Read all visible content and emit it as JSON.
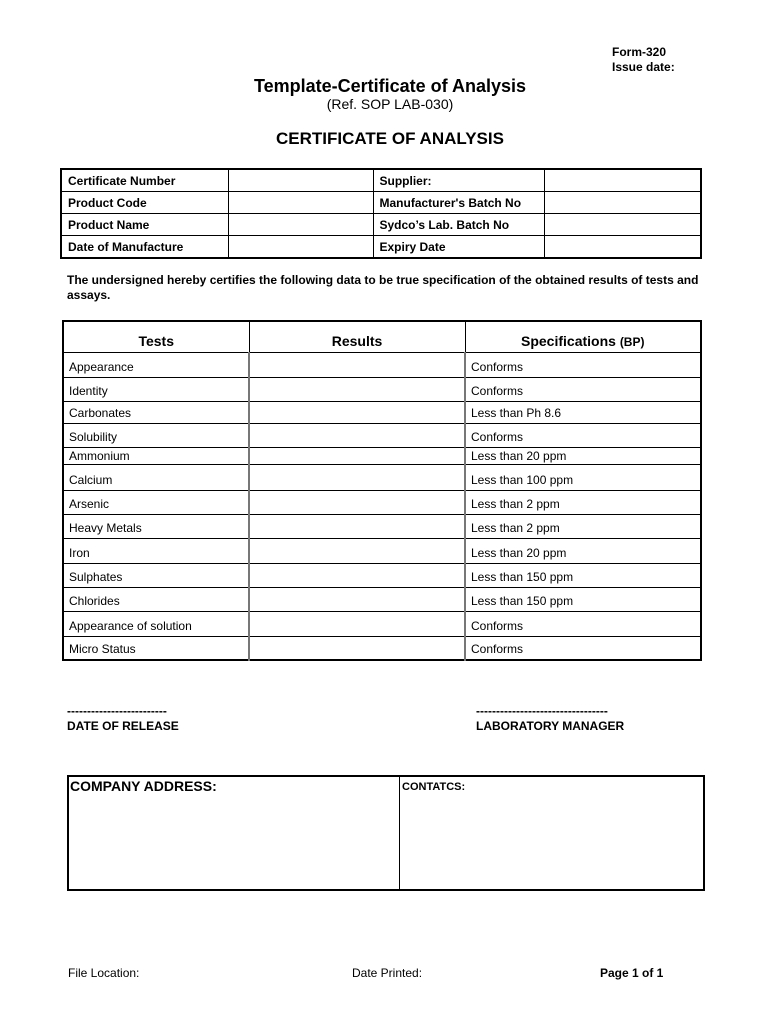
{
  "header": {
    "form": "Form-320",
    "issue_date": "Issue date:",
    "title": "Template-Certificate of Analysis",
    "ref": "(Ref. SOP LAB-030)",
    "certificate_heading": "CERTIFICATE OF ANALYSIS"
  },
  "info_table": [
    {
      "left": "Certificate Number",
      "right": "Supplier:"
    },
    {
      "left": "Product Code",
      "right": "Manufacturer's Batch No"
    },
    {
      "left": "Product Name",
      "right": "Sydco’s Lab. Batch No"
    },
    {
      "left": "Date of Manufacture",
      "right": "Expiry Date"
    }
  ],
  "statement": "The undersigned hereby certifies the following data to be true specification of the obtained results of tests and assays.",
  "tests_table": {
    "headers": {
      "tests": "Tests",
      "results": "Results",
      "specifications": "Specifications",
      "spec_suffix": "(BP)"
    },
    "rows": [
      {
        "test": "Appearance",
        "result": "",
        "spec": "Conforms"
      },
      {
        "test": "Identity",
        "result": "",
        "spec": "Conforms"
      },
      {
        "test": "Carbonates",
        "result": "",
        "spec": "Less than Ph 8.6"
      },
      {
        "test": "Solubility",
        "result": "",
        "spec": "Conforms"
      },
      {
        "test": "Ammonium",
        "result": "",
        "spec": "Less than 20 ppm"
      },
      {
        "test": "Calcium",
        "result": "",
        "spec": "Less than 100 ppm"
      },
      {
        "test": "Arsenic",
        "result": "",
        "spec": "Less than 2 ppm"
      },
      {
        "test": "Heavy Metals",
        "result": "",
        "spec": "Less than 2 ppm"
      },
      {
        "test": "Iron",
        "result": "",
        "spec": "Less than 20 ppm"
      },
      {
        "test": "Sulphates",
        "result": "",
        "spec": "Less than 150 ppm"
      },
      {
        "test": "Chlorides",
        "result": "",
        "spec": "Less than 150 ppm"
      },
      {
        "test": "Appearance of solution",
        "result": "",
        "spec": "Conforms"
      },
      {
        "test": "Micro Status",
        "result": "",
        "spec": "Conforms"
      }
    ]
  },
  "signatures": {
    "release_line": "-------------------------",
    "release_label": "DATE OF RELEASE",
    "manager_line": "---------------------------------",
    "manager_label": "LABORATORY MANAGER"
  },
  "address_box": {
    "company_address": "COMPANY ADDRESS:",
    "contacts": "CONTATCS:"
  },
  "footer": {
    "file_location": "File Location:",
    "date_printed": "Date Printed:",
    "page": "Page 1 of 1"
  }
}
